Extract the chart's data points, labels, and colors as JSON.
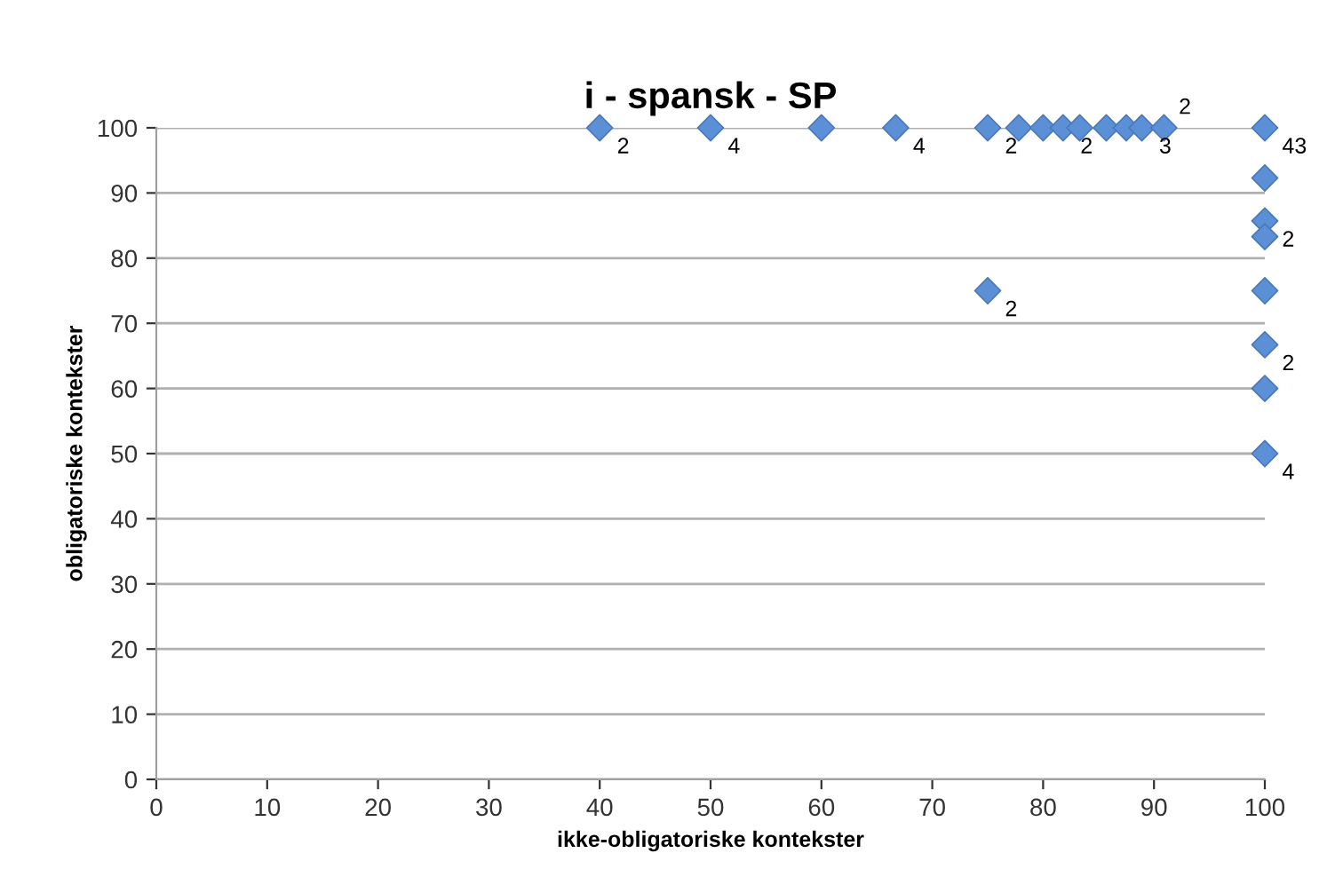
{
  "chart_data": {
    "type": "scatter",
    "title": "i - spansk - SP",
    "xlabel": "ikke-obligatoriske kontekster",
    "ylabel": "obligatoriske kontekster",
    "x": [
      40,
      50,
      60,
      66.7,
      75,
      77.8,
      80,
      81.8,
      83.3,
      85.7,
      87.5,
      88.9,
      90.9,
      100,
      100,
      100,
      100,
      100,
      100,
      100,
      100,
      75
    ],
    "series": [
      {
        "color": "#5b8fd6",
        "values": [
          100,
          100,
          100,
          100,
          100,
          100,
          100,
          100,
          100,
          100,
          100,
          100,
          100,
          100,
          92.3,
          85.7,
          83.3,
          75,
          66.7,
          60,
          50,
          75
        ]
      }
    ],
    "marker": "diamond",
    "grid": "y",
    "xlim": [
      0,
      100
    ],
    "xticks": [
      0,
      10,
      20,
      30,
      40,
      50,
      60,
      70,
      80,
      90,
      100
    ],
    "ylim": [
      0,
      100
    ],
    "yticks": [
      0,
      10,
      20,
      30,
      40,
      50,
      60,
      70,
      80,
      90,
      100
    ],
    "annotations": [
      {
        "text": "2",
        "x": 40,
        "y": 100
      },
      {
        "text": "4",
        "x": 50,
        "y": 100
      },
      {
        "text": "4",
        "x": 66.7,
        "y": 100
      },
      {
        "text": "2",
        "x": 75,
        "y": 100
      },
      {
        "text": "2",
        "x": 81.8,
        "y": 100
      },
      {
        "text": "3",
        "x": 88.9,
        "y": 100
      },
      {
        "text": "2",
        "x": 90.9,
        "y": 100
      },
      {
        "text": "43",
        "x": 100,
        "y": 100
      },
      {
        "text": "2",
        "x": 100,
        "y": 85.7
      },
      {
        "text": "2",
        "x": 75,
        "y": 75
      },
      {
        "text": "2",
        "x": 100,
        "y": 66.7
      },
      {
        "text": "4",
        "x": 100,
        "y": 50
      }
    ]
  }
}
